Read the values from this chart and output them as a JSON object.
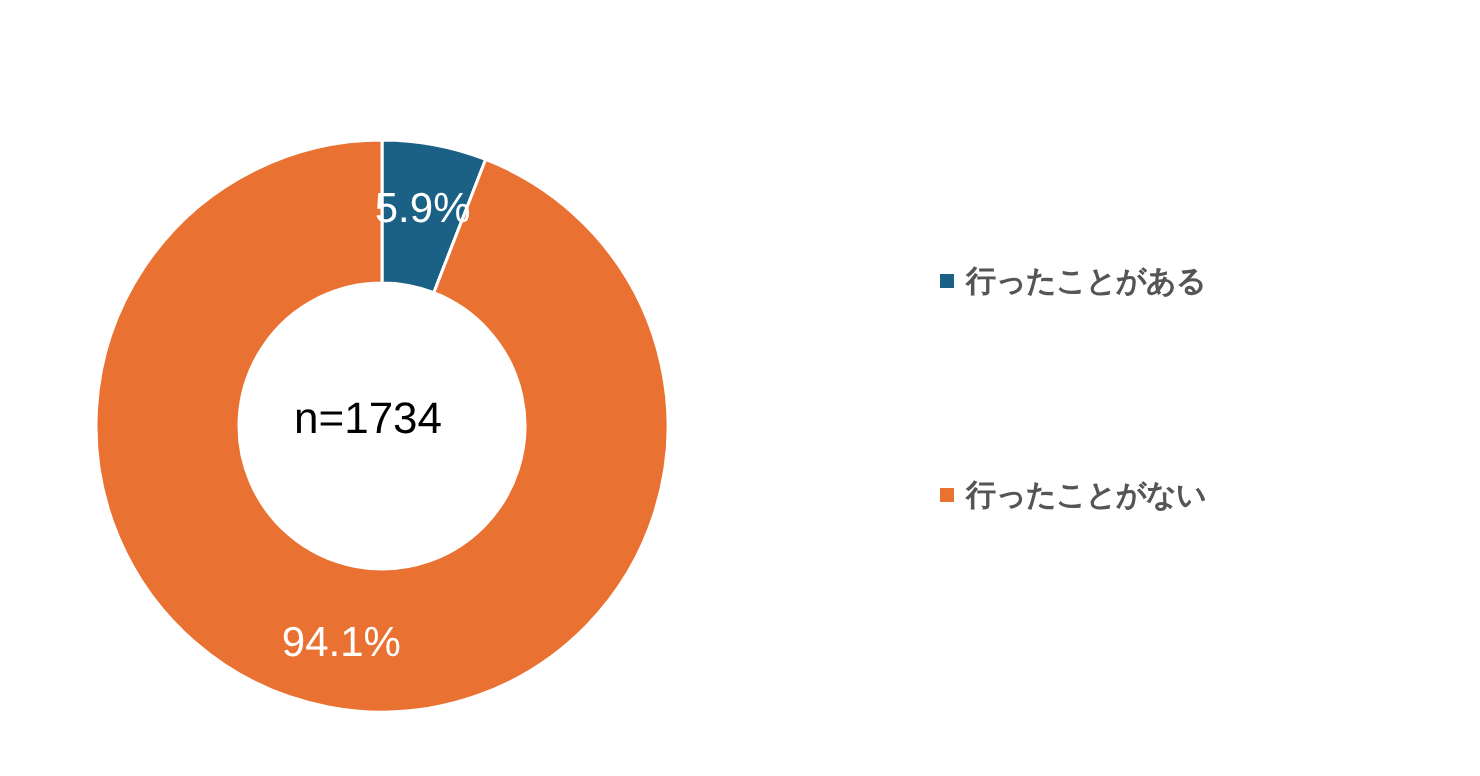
{
  "chart_data": {
    "type": "donut",
    "categories": [
      "行ったことがある",
      "行ったことがない"
    ],
    "values": [
      5.9,
      94.1
    ],
    "colors": [
      "#1a6185",
      "#e97132"
    ],
    "value_labels": [
      "5.9%",
      "94.1%"
    ],
    "annotations": [
      "n=1734"
    ],
    "legend": "right"
  }
}
